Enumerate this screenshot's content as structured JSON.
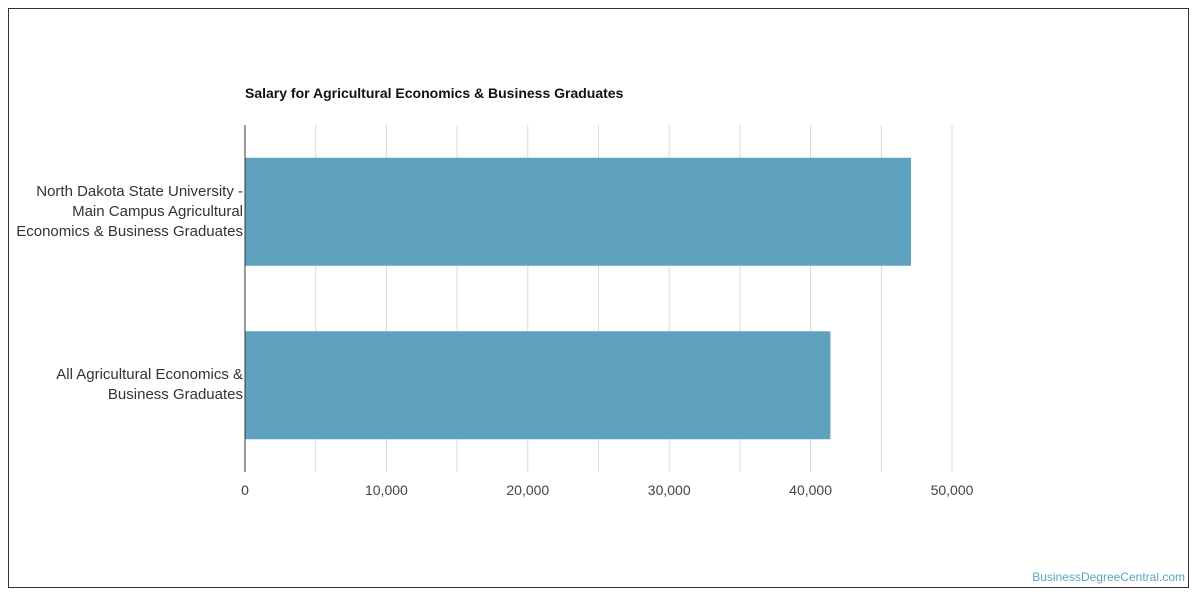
{
  "chart_data": {
    "type": "bar",
    "orientation": "horizontal",
    "title": "Salary for Agricultural Economics & Business Graduates",
    "xlabel": "",
    "ylabel": "",
    "categories": [
      "North Dakota State University - Main Campus Agricultural Economics & Business Graduates",
      "All Agricultural Economics & Business Graduates"
    ],
    "category_lines": [
      [
        "North Dakota State University -",
        "Main Campus Agricultural",
        "Economics & Business Graduates"
      ],
      [
        "All Agricultural Economics &",
        "Business Graduates"
      ]
    ],
    "values": [
      47100,
      41400
    ],
    "xlim": [
      0,
      50000
    ],
    "ticks": [
      0,
      10000,
      20000,
      30000,
      40000,
      50000
    ],
    "tick_labels": [
      "0",
      "10,000",
      "20,000",
      "30,000",
      "40,000",
      "50,000"
    ],
    "grid": true,
    "bar_color": "#5ea2bf",
    "grid_color": "#d9d9d9"
  },
  "watermark": "BusinessDegreeCentral.com"
}
